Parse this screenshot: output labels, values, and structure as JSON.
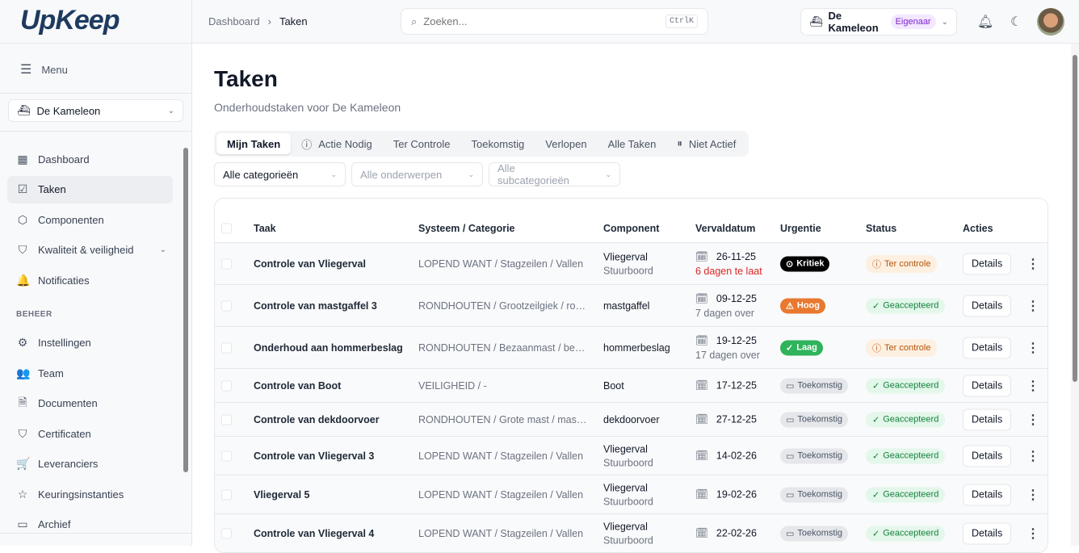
{
  "app": {
    "logo": "UpKeep"
  },
  "sidebar": {
    "menu_label": "Menu",
    "boat": "De Kameleon",
    "items": [
      {
        "label": "Dashboard",
        "icon": "dashboard-icon",
        "g": "▦"
      },
      {
        "label": "Taken",
        "icon": "checkbox-icon",
        "g": "☑",
        "active": true
      },
      {
        "label": "Componenten",
        "icon": "box-icon",
        "g": "⬡"
      },
      {
        "label": "Kwaliteit & veiligheid",
        "icon": "shield-check-icon",
        "g": "⛉",
        "expand": true
      },
      {
        "label": "Notificaties",
        "icon": "bell-icon",
        "g": "🔔"
      }
    ],
    "section": "BEHEER",
    "admin_items": [
      {
        "label": "Instellingen",
        "icon": "gear-icon",
        "g": "⚙"
      },
      {
        "label": "Team",
        "icon": "users-icon",
        "g": "👥"
      },
      {
        "label": "Documenten",
        "icon": "document-icon",
        "g": "🗎"
      },
      {
        "label": "Certificaten",
        "icon": "shield-icon",
        "g": "⛉"
      },
      {
        "label": "Leveranciers",
        "icon": "cart-icon",
        "g": "🛒"
      },
      {
        "label": "Keuringsinstanties",
        "icon": "star-icon",
        "g": "☆"
      },
      {
        "label": "Archief",
        "icon": "archive-icon",
        "g": "▭"
      }
    ]
  },
  "header": {
    "breadcrumb": [
      "Dashboard",
      "Taken"
    ],
    "search_placeholder": "Zoeken...",
    "shortcut": "CtrlK",
    "org": "De Kameleon",
    "role": "Eigenaar"
  },
  "page": {
    "title": "Taken",
    "subtitle": "Onderhoudstaken voor De Kameleon"
  },
  "tabs": [
    {
      "label": "Mijn Taken",
      "active": true
    },
    {
      "label": "Actie Nodig",
      "icon": "alert-circle-icon",
      "g": "ⓘ"
    },
    {
      "label": "Ter Controle"
    },
    {
      "label": "Toekomstig"
    },
    {
      "label": "Verlopen"
    },
    {
      "label": "Alle Taken"
    },
    {
      "label": "Niet Actief",
      "icon": "pause-icon",
      "g": "⏸"
    }
  ],
  "filters": [
    {
      "label": "Alle categorieën",
      "selected": true
    },
    {
      "label": "Alle onderwerpen"
    },
    {
      "label": "Alle subcategorieën"
    }
  ],
  "table": {
    "columns": [
      "Taak",
      "Systeem / Categorie",
      "Component",
      "Vervaldatum",
      "Urgentie",
      "Status",
      "Acties"
    ],
    "action_label": "Details",
    "rows": [
      {
        "task": "Controle van Vliegerval",
        "system": "LOPEND WANT / Stagzeilen / Vallen",
        "component": "Vliegerval",
        "component_sub": "Stuurboord",
        "date": "26-11-25",
        "date_sub": "6 dagen te laat",
        "late": true,
        "urgency": "Kritiek",
        "urgency_type": "kritiek",
        "status": "Ter controle",
        "status_type": "review"
      },
      {
        "task": "Controle van mastgaffel 3",
        "system": "RONDHOUTEN / Grootzeilgiek / ron...",
        "component": "mastgaffel",
        "date": "09-12-25",
        "date_sub": "7 dagen over",
        "urgency": "Hoog",
        "urgency_type": "hoog",
        "status": "Geaccepteerd",
        "status_type": "ok"
      },
      {
        "task": "Onderhoud aan hommerbeslag",
        "system": "RONDHOUTEN / Bezaanmast / besl...",
        "component": "hommerbeslag",
        "date": "19-12-25",
        "date_sub": "17 dagen over",
        "urgency": "Laag",
        "urgency_type": "laag",
        "status": "Ter controle",
        "status_type": "review"
      },
      {
        "task": "Controle van Boot",
        "system": "VEILIGHEID / -",
        "component": "Boot",
        "date": "17-12-25",
        "urgency": "Toekomstig",
        "urgency_type": "toekomstig",
        "status": "Geaccepteerd",
        "status_type": "ok"
      },
      {
        "task": "Controle van dekdoorvoer",
        "system": "RONDHOUTEN / Grote mast / mastv...",
        "component": "dekdoorvoer",
        "date": "27-12-25",
        "urgency": "Toekomstig",
        "urgency_type": "toekomstig",
        "status": "Geaccepteerd",
        "status_type": "ok"
      },
      {
        "task": "Controle van Vliegerval 3",
        "system": "LOPEND WANT / Stagzeilen / Vallen",
        "component": "Vliegerval",
        "component_sub": "Stuurboord",
        "date": "14-02-26",
        "urgency": "Toekomstig",
        "urgency_type": "toekomstig",
        "status": "Geaccepteerd",
        "status_type": "ok"
      },
      {
        "task": "Vliegerval 5",
        "system": "LOPEND WANT / Stagzeilen / Vallen",
        "component": "Vliegerval",
        "component_sub": "Stuurboord",
        "date": "19-02-26",
        "urgency": "Toekomstig",
        "urgency_type": "toekomstig",
        "status": "Geaccepteerd",
        "status_type": "ok"
      },
      {
        "task": "Controle van Vliegerval 4",
        "system": "LOPEND WANT / Stagzeilen / Vallen",
        "component": "Vliegerval",
        "component_sub": "Stuurboord",
        "date": "22-02-26",
        "urgency": "Toekomstig",
        "urgency_type": "toekomstig",
        "status": "Geaccepteerd",
        "status_type": "ok"
      }
    ]
  }
}
